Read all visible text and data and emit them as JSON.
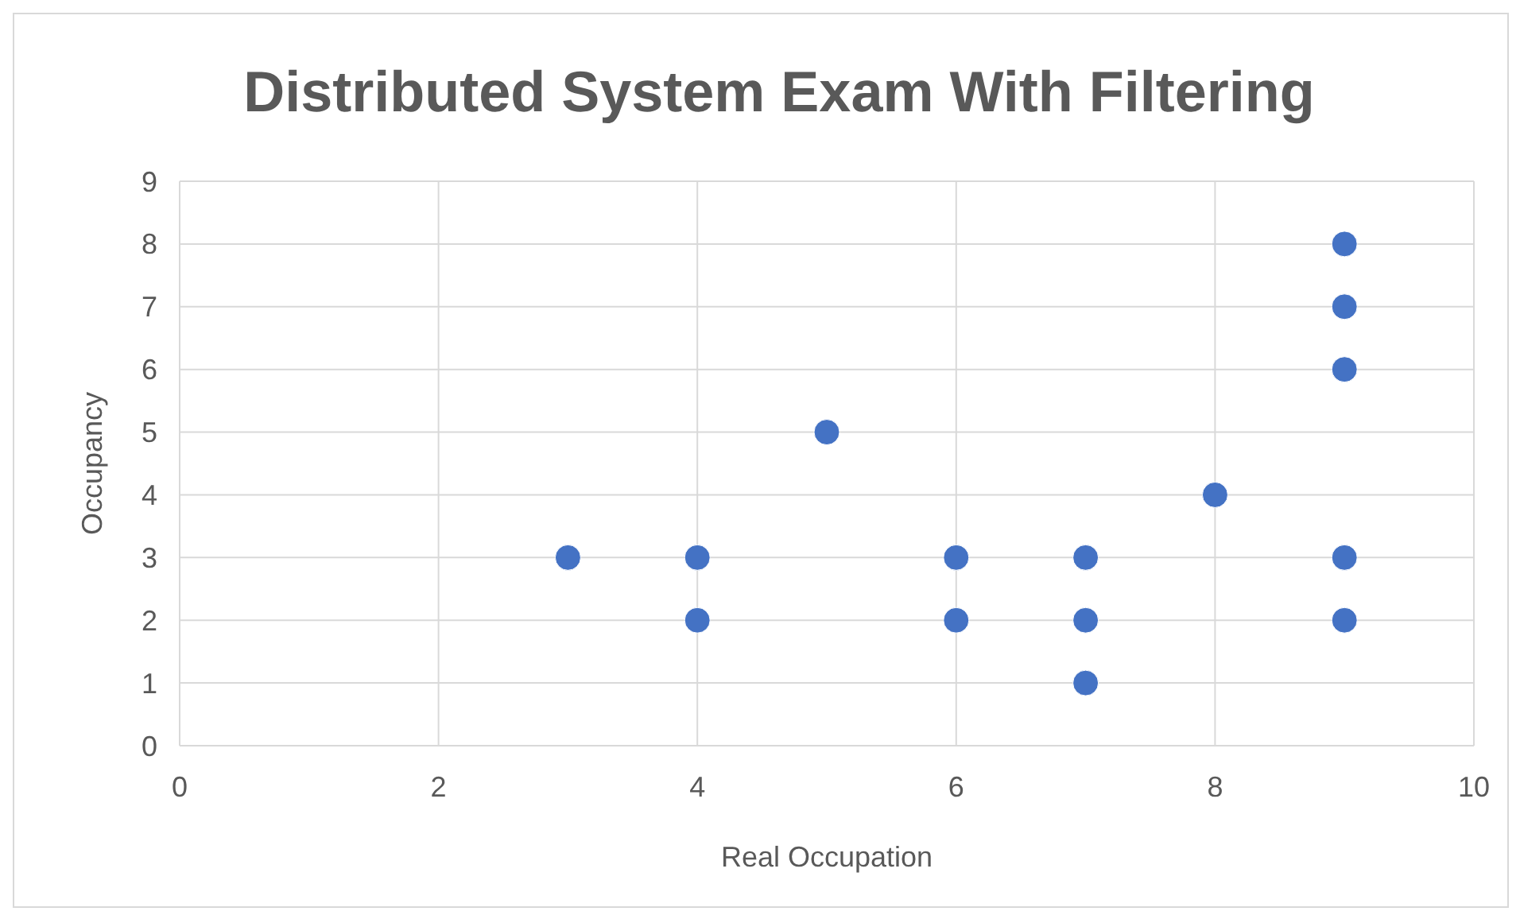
{
  "chart_data": {
    "type": "scatter",
    "title": "Distributed System Exam With Filtering",
    "xlabel": "Real Occupation",
    "ylabel": "Occupancy",
    "x": [
      3,
      4,
      4,
      5,
      6,
      6,
      7,
      7,
      7,
      8,
      9,
      9,
      9,
      9,
      9
    ],
    "series": [
      {
        "color": "#4472c4",
        "values": [
          3,
          3,
          2,
          5,
          3,
          2,
          3,
          2,
          1,
          4,
          8,
          7,
          6,
          3,
          2
        ]
      }
    ],
    "xlim": [
      0,
      10
    ],
    "xticks": [
      0,
      2,
      4,
      6,
      8,
      10
    ],
    "ylim": [
      0,
      9
    ],
    "yticks": [
      0,
      1,
      2,
      3,
      4,
      5,
      6,
      7,
      8,
      9
    ],
    "grid": true,
    "marker": "circle"
  }
}
